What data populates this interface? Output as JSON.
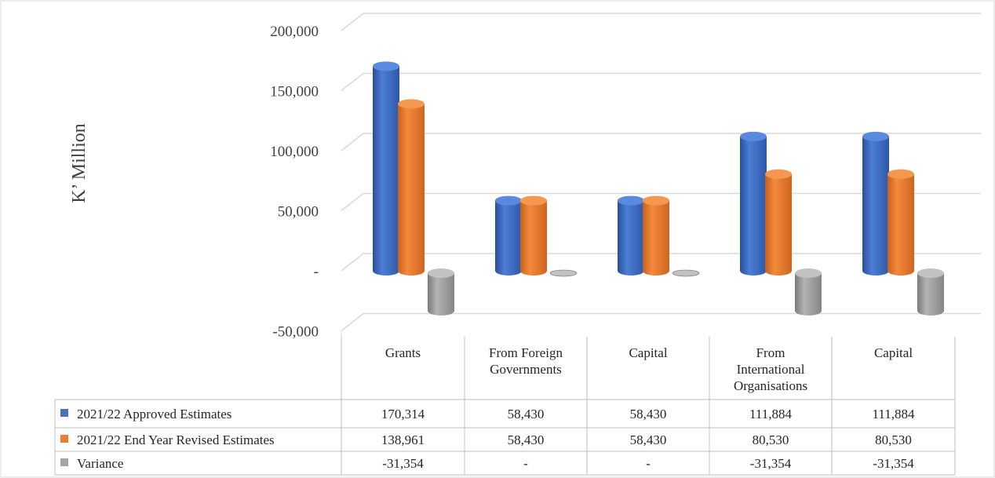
{
  "chart_data": {
    "type": "bar",
    "ylabel": "K’ Million",
    "ylim": [
      -50000,
      200000
    ],
    "yticks": [
      -50000,
      0,
      50000,
      100000,
      150000,
      200000
    ],
    "ytick_labels": [
      "-50,000",
      "-",
      "50,000",
      "100,000",
      "150,000",
      "200,000"
    ],
    "grid": true,
    "legend_position": "data-table",
    "categories": [
      [
        "Grants"
      ],
      [
        "From Foreign",
        "Governments"
      ],
      [
        "Capital"
      ],
      [
        "From",
        "International",
        "Organisations"
      ],
      [
        "Capital"
      ]
    ],
    "series": [
      {
        "name": "2021/22 Approved Estimates",
        "color": "#4472C4",
        "values": [
          170314,
          58430,
          58430,
          111884,
          111884
        ],
        "labels": [
          "170,314",
          "58,430",
          "58,430",
          "111,884",
          "111,884"
        ]
      },
      {
        "name": "2021/22 End Year Revised Estimates",
        "color": "#ED7D31",
        "values": [
          138961,
          58430,
          58430,
          80530,
          80530
        ],
        "labels": [
          "138,961",
          "58,430",
          "58,430",
          "80,530",
          "80,530"
        ]
      },
      {
        "name": "Variance",
        "color": "#A5A5A5",
        "values": [
          -31354,
          0,
          0,
          -31354,
          -31354
        ],
        "labels": [
          "-31,354",
          "-",
          "-",
          "-31,354",
          "-31,354"
        ]
      }
    ]
  }
}
